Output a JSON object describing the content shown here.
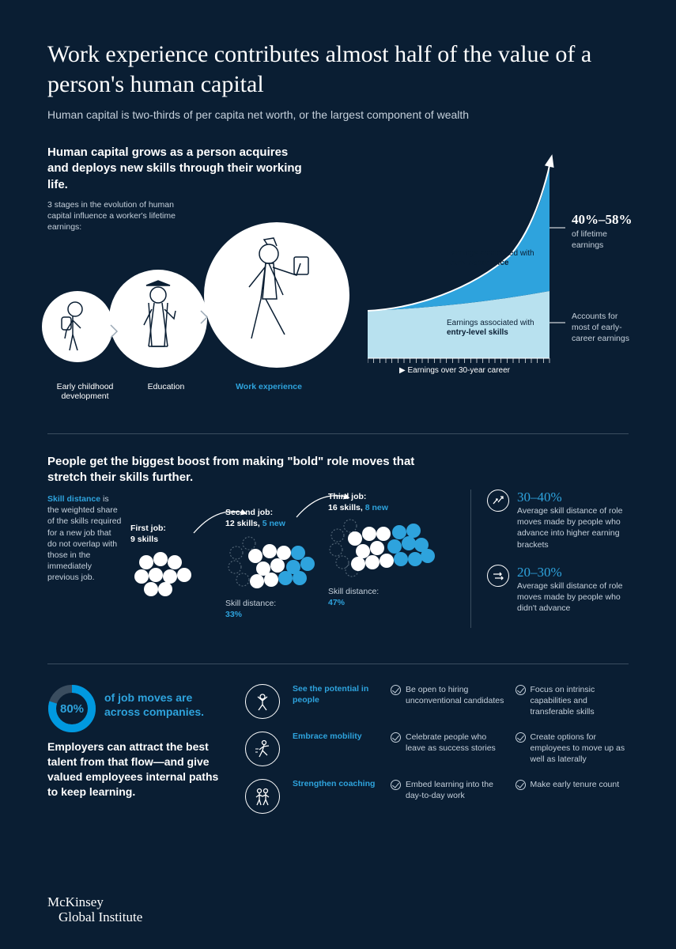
{
  "background_color": "#0a1e33",
  "accent_color": "#2ea3dd",
  "text_color": "#ffffff",
  "muted_text_color": "#c5d0db",
  "divider_color": "#3a4d5f",
  "title": "Work experience contributes almost half of the value of a person's human capital",
  "subtitle": "Human capital is two-thirds of per capita net worth, or the largest component of wealth",
  "section1": {
    "heading": "Human capital grows as a person acquires and deploys new skills through their working life.",
    "stages_note": "3 stages in the evolution of human capital influence a worker's lifetime earnings:",
    "stages": [
      {
        "label": "Early childhood development",
        "circle_radius": 45
      },
      {
        "label": "Education",
        "circle_radius": 60
      },
      {
        "label": "Work experience",
        "circle_radius": 90,
        "accent": true
      }
    ],
    "chart": {
      "type": "area",
      "upper_label_prefix": "Earnings associated with ",
      "upper_label_bold": "work experience",
      "upper_stat": "40%–58%",
      "upper_stat_sub": "of lifetime earnings",
      "upper_fill": "#2ea3dd",
      "lower_label_prefix": "Earnings associated with ",
      "lower_label_bold": "entry-level skills",
      "lower_stat_sub": "Accounts for most of early-career earnings",
      "lower_fill": "#b8e1ef",
      "x_axis_label": "▶ Earnings over 30-year career",
      "tick_count": 30
    }
  },
  "section2": {
    "heading": "People get the biggest boost from making \"bold\" role moves that stretch their skills further.",
    "skill_distance_def_term": "Skill distance",
    "skill_distance_def_body": "is the weighted share of the skills required for a new job that do not overlap with those in the immediately previous job.",
    "jobs": [
      {
        "title": "First job:",
        "skills_total": 9,
        "skills_new": 0,
        "skills_line": "9 skills",
        "new_line": "",
        "distance_label": "",
        "distance_pct": ""
      },
      {
        "title": "Second job:",
        "skills_total": 12,
        "skills_new": 5,
        "skills_line": "12 skills,",
        "new_line": "5 new",
        "distance_label": "Skill distance:",
        "distance_pct": "33%",
        "ghost_count": 4
      },
      {
        "title": "Third job:",
        "skills_total": 16,
        "skills_new": 8,
        "skills_line": "16 skills,",
        "new_line": "8 new",
        "distance_label": "Skill distance:",
        "distance_pct": "47%",
        "ghost_count": 5
      }
    ],
    "bubble_old_color": "#ffffff",
    "bubble_new_color": "#2ea3dd",
    "bubble_ghost_stroke": "#5a6d7d",
    "stats": [
      {
        "icon": "up-arrows",
        "pct": "30–40%",
        "desc": "Average skill distance of role moves made by people who advance into higher earning brackets"
      },
      {
        "icon": "flat-arrows",
        "pct": "20–30%",
        "desc": "Average skill distance of role moves made by people who didn't advance"
      }
    ]
  },
  "section3": {
    "donut_pct": 80,
    "donut_label": "80%",
    "donut_text_accent": "of job moves are across companies.",
    "employer_text": "Employers can attract the best talent from that flow—and give valued employees internal paths to keep learning.",
    "donut_fg": "#0099e0",
    "donut_bg": "#3a4d5f",
    "actions": [
      {
        "icon": "potential",
        "title": "See the potential in people",
        "items": [
          "Be open to hiring unconventional candidates",
          "Focus on intrinsic capabilities and transferable skills"
        ]
      },
      {
        "icon": "mobility",
        "title": "Embrace mobility",
        "items": [
          "Celebrate people who leave as success stories",
          "Create options for employees to move up as well as laterally"
        ]
      },
      {
        "icon": "coaching",
        "title": "Strengthen coaching",
        "items": [
          "Embed learning into the day-to-day work",
          "Make early tenure count"
        ]
      }
    ]
  },
  "footer": {
    "line1": "McKinsey",
    "line2": "Global Institute"
  }
}
